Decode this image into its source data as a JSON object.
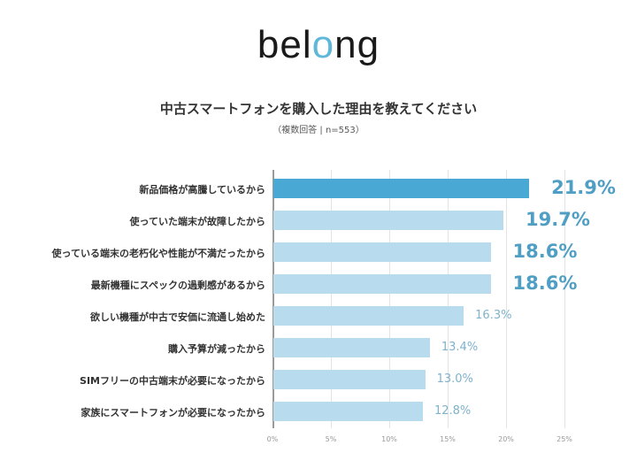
{
  "header": {
    "logo_prefix": "bel",
    "logo_accent": "o",
    "logo_suffix": "ng",
    "title": "中古スマートフォンを購入した理由を教えてください",
    "subtitle": "（複数回答 | n=553）"
  },
  "colors": {
    "highlight_bar": "#4aa8d4",
    "bar": "#b8dbee",
    "value_text": "#4f9ec4",
    "logo_accent": "#5fb7da"
  },
  "chart_data": {
    "type": "bar",
    "orientation": "horizontal",
    "title": "中古スマートフォンを購入した理由を教えてください",
    "subtitle": "（複数回答 | n=553）",
    "xlabel": "",
    "ylabel": "",
    "xlim": [
      0,
      25
    ],
    "grid": true,
    "categories": [
      "新品価格が高騰しているから",
      "使っていた端末が故障したから",
      "使っている端末の老朽化や性能が不満だったから",
      "最新機種にスペックの過剰感があるから",
      "欲しい機種が中古で安価に流通し始めた",
      "購入予算が減ったから",
      "SIMフリーの中古端末が必要になったから",
      "家族にスマートフォンが必要になったから"
    ],
    "values": [
      21.9,
      19.7,
      18.6,
      18.6,
      16.3,
      13.4,
      13.0,
      12.8
    ],
    "value_labels": [
      "21.9%",
      "19.7%",
      "18.6%",
      "18.6%",
      "16.3%",
      "13.4%",
      "13.0%",
      "12.8%"
    ],
    "tick_labels": [
      "0%",
      "5%",
      "10%",
      "15%",
      "20%",
      "25%"
    ],
    "ticks": [
      0,
      5,
      10,
      15,
      20,
      25
    ]
  }
}
